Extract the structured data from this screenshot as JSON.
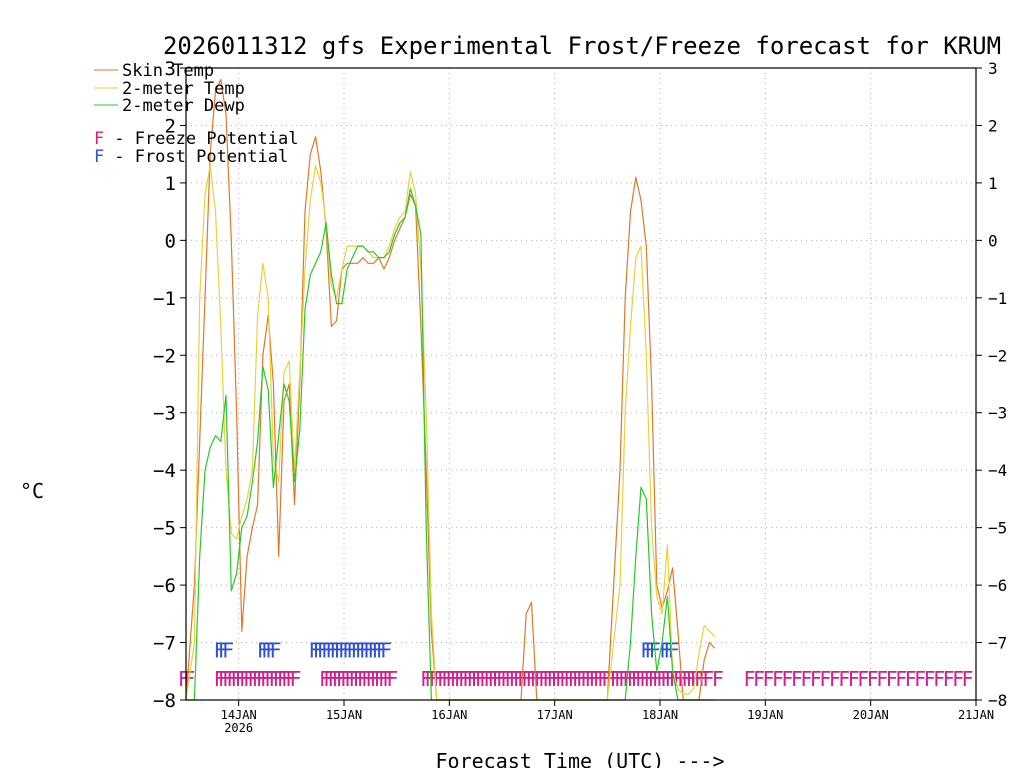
{
  "chart_data": {
    "type": "line",
    "title": "2026011312 gfs Experimental Frost/Freeze forecast for KRUM",
    "xlabel": "Forecast Time (UTC) --->",
    "ylabel": "°C",
    "xlim": [
      13.5,
      21.0
    ],
    "ylim": [
      -8,
      3
    ],
    "yticks": [
      -8,
      -7,
      -6,
      -5,
      -4,
      -3,
      -2,
      -1,
      0,
      1,
      2,
      3
    ],
    "xticks": [
      {
        "x": 14,
        "label": "14JAN",
        "sublabel": "2026"
      },
      {
        "x": 15,
        "label": "15JAN",
        "sublabel": ""
      },
      {
        "x": 16,
        "label": "16JAN",
        "sublabel": ""
      },
      {
        "x": 17,
        "label": "17JAN",
        "sublabel": ""
      },
      {
        "x": 18,
        "label": "18JAN",
        "sublabel": ""
      },
      {
        "x": 19,
        "label": "19JAN",
        "sublabel": ""
      },
      {
        "x": 20,
        "label": "20JAN",
        "sublabel": ""
      },
      {
        "x": 21,
        "label": "21JAN",
        "sublabel": ""
      }
    ],
    "grid": true,
    "legend": {
      "position": "top-left",
      "series_entries": [
        "Skin Temp",
        "2-meter Temp",
        "2-meter Dewp"
      ],
      "marker_entries": [
        {
          "glyph": "F",
          "text": " - Freeze Potential",
          "color": "#d0208a"
        },
        {
          "glyph": "F",
          "text": " - Frost Potential",
          "color": "#3050d8"
        }
      ]
    },
    "series": [
      {
        "name": "Skin Temp",
        "color": "#e0782a",
        "x": [
          13.5,
          13.58,
          13.63,
          13.68,
          13.73,
          13.78,
          13.83,
          13.88,
          13.93,
          13.98,
          14.03,
          14.08,
          14.13,
          14.18,
          14.23,
          14.28,
          14.33,
          14.38,
          14.43,
          14.48,
          14.53,
          14.58,
          14.63,
          14.68,
          14.73,
          14.78,
          14.83,
          14.88,
          14.93,
          14.98,
          15.03,
          15.08,
          15.13,
          15.18,
          15.23,
          15.28,
          15.33,
          15.38,
          15.43,
          15.48,
          15.53,
          15.58,
          15.63,
          15.68,
          15.73,
          15.78,
          15.83,
          15.88,
          15.93,
          15.98,
          16.03,
          16.5,
          16.68,
          16.73,
          16.78,
          16.83,
          17.5,
          17.62,
          17.67,
          17.72,
          17.77,
          17.82,
          17.87,
          17.92,
          17.97,
          18.02,
          18.07,
          18.12,
          18.17,
          18.22,
          18.27,
          18.32,
          18.37,
          18.42,
          18.47,
          18.52
        ],
        "y": [
          -8,
          -6,
          -3.5,
          -1,
          1.5,
          2.6,
          2.8,
          2.2,
          0,
          -3,
          -6.8,
          -5.5,
          -5,
          -4.6,
          -2,
          -1.3,
          -2.5,
          -5.5,
          -2.8,
          -2.5,
          -4.6,
          -2.5,
          0.5,
          1.5,
          1.8,
          1.2,
          0.2,
          -1.5,
          -1.4,
          -0.5,
          -0.4,
          -0.4,
          -0.4,
          -0.3,
          -0.4,
          -0.4,
          -0.3,
          -0.5,
          -0.3,
          0,
          0.2,
          0.4,
          0.8,
          0.6,
          -1.5,
          -4,
          -6.8,
          -8,
          -8,
          -8,
          -8,
          -8,
          -8,
          -6.5,
          -6.3,
          -8,
          -8,
          -4,
          -1,
          0.5,
          1.1,
          0.7,
          -0.1,
          -2.5,
          -6,
          -6.4,
          -6.1,
          -5.7,
          -6.8,
          -8,
          -8,
          -8,
          -8,
          -7.3,
          -7.0,
          -7.1
        ]
      },
      {
        "name": "2-meter Temp",
        "color": "#e8d23a",
        "x": [
          13.5,
          13.58,
          13.63,
          13.68,
          13.73,
          13.78,
          13.83,
          13.88,
          13.93,
          13.98,
          14.03,
          14.08,
          14.13,
          14.18,
          14.23,
          14.28,
          14.33,
          14.38,
          14.43,
          14.48,
          14.53,
          14.58,
          14.63,
          14.68,
          14.73,
          14.78,
          14.83,
          14.88,
          14.93,
          14.98,
          15.03,
          15.08,
          15.13,
          15.18,
          15.23,
          15.28,
          15.33,
          15.38,
          15.43,
          15.48,
          15.53,
          15.58,
          15.63,
          15.68,
          15.73,
          15.78,
          15.83,
          15.88,
          15.93,
          15.98,
          16.03,
          17.5,
          17.62,
          17.67,
          17.72,
          17.77,
          17.82,
          17.87,
          17.92,
          17.97,
          18.02,
          18.07,
          18.12,
          18.17,
          18.22,
          18.27,
          18.32,
          18.37,
          18.42,
          18.47,
          18.52
        ],
        "y": [
          -8,
          -7,
          -1,
          0.8,
          1.3,
          0.5,
          -1.5,
          -4,
          -5.1,
          -5.2,
          -4.8,
          -4.5,
          -4,
          -1.3,
          -0.4,
          -1,
          -3.8,
          -4.2,
          -2.3,
          -2.1,
          -4,
          -2.3,
          -0.5,
          0.7,
          1.3,
          1,
          0.3,
          -0.8,
          -1,
          -0.5,
          -0.1,
          -0.1,
          -0.1,
          -0.1,
          -0.2,
          -0.3,
          -0.3,
          -0.3,
          -0.1,
          0.2,
          0.4,
          0.5,
          1.2,
          0.8,
          -0.5,
          -3,
          -6.5,
          -8,
          -8,
          -8,
          -8,
          -8,
          -6,
          -3,
          -1.5,
          -0.3,
          -0.1,
          -2,
          -5,
          -6.2,
          -6.5,
          -5.3,
          -7.5,
          -7.8,
          -7.9,
          -7.9,
          -7.8,
          -7.2,
          -6.7,
          -6.8,
          -6.9
        ]
      },
      {
        "name": "2-meter Dewp",
        "color": "#28c828",
        "x": [
          13.5,
          13.58,
          13.63,
          13.68,
          13.73,
          13.78,
          13.83,
          13.88,
          13.93,
          13.98,
          14.03,
          14.08,
          14.13,
          14.18,
          14.23,
          14.28,
          14.33,
          14.38,
          14.43,
          14.48,
          14.53,
          14.58,
          14.63,
          14.68,
          14.73,
          14.78,
          14.83,
          14.88,
          14.93,
          14.98,
          15.03,
          15.08,
          15.13,
          15.18,
          15.23,
          15.28,
          15.33,
          15.38,
          15.43,
          15.48,
          15.53,
          15.58,
          15.63,
          15.68,
          15.73,
          15.78,
          15.83,
          15.88,
          15.93,
          15.98,
          16.03,
          17.5,
          17.62,
          17.67,
          17.72,
          17.77,
          17.82,
          17.87,
          17.92,
          17.97,
          18.02,
          18.07,
          18.12,
          18.17,
          18.22,
          18.27,
          18.32,
          18.37,
          18.42,
          18.47,
          18.52
        ],
        "y": [
          -8,
          -8,
          -5.5,
          -4,
          -3.6,
          -3.4,
          -3.5,
          -2.7,
          -6.1,
          -5.8,
          -5,
          -4.8,
          -4.2,
          -3.5,
          -2.2,
          -2.6,
          -4.3,
          -3.4,
          -2.5,
          -2.8,
          -4.2,
          -3.3,
          -1.2,
          -0.6,
          -0.4,
          -0.2,
          0.3,
          -0.6,
          -1.1,
          -1.1,
          -0.5,
          -0.3,
          -0.1,
          -0.1,
          -0.2,
          -0.2,
          -0.3,
          -0.3,
          -0.2,
          0.1,
          0.3,
          0.4,
          0.9,
          0.6,
          0.1,
          -5,
          -8,
          -8,
          -8,
          -8,
          -8,
          -8,
          -8,
          -8,
          -7,
          -5.5,
          -4.3,
          -4.5,
          -6.5,
          -7.5,
          -7,
          -6.2,
          -7.5,
          -8,
          -8,
          -8,
          -8,
          -8,
          -8,
          -8,
          -8
        ]
      }
    ],
    "frost_markers": {
      "label": "Frost Potential",
      "glyph": "F",
      "y": -7.1,
      "x": [
        13.82,
        13.86,
        13.9,
        14.23,
        14.27,
        14.31,
        14.35,
        14.72,
        14.76,
        14.8,
        14.84,
        14.88,
        14.92,
        14.96,
        15.0,
        15.04,
        15.08,
        15.12,
        15.16,
        15.2,
        15.24,
        15.28,
        15.32,
        15.36,
        15.4,
        17.87,
        17.91,
        17.95,
        18.05,
        18.09,
        18.13
      ]
    },
    "freeze_markers": {
      "label": "Freeze Potential",
      "glyph": "F",
      "y": -7.6,
      "x": [
        13.48,
        13.53,
        13.82,
        13.86,
        13.9,
        13.94,
        13.98,
        14.02,
        14.06,
        14.1,
        14.14,
        14.18,
        14.22,
        14.26,
        14.3,
        14.34,
        14.38,
        14.42,
        14.46,
        14.5,
        14.54,
        14.82,
        14.86,
        14.9,
        14.94,
        14.98,
        15.02,
        15.06,
        15.1,
        15.14,
        15.18,
        15.22,
        15.26,
        15.3,
        15.34,
        15.38,
        15.42,
        15.46,
        15.78,
        15.82,
        15.86,
        15.9,
        15.94,
        15.98,
        16.02,
        16.06,
        16.1,
        16.14,
        16.18,
        16.22,
        16.26,
        16.3,
        16.34,
        16.38,
        16.42,
        16.46,
        16.5,
        16.54,
        16.58,
        16.62,
        16.66,
        16.7,
        16.74,
        16.78,
        16.82,
        16.86,
        16.9,
        16.94,
        16.98,
        17.02,
        17.06,
        17.1,
        17.14,
        17.18,
        17.22,
        17.26,
        17.3,
        17.34,
        17.38,
        17.42,
        17.46,
        17.5,
        17.54,
        17.58,
        17.62,
        17.66,
        17.7,
        17.74,
        17.78,
        17.82,
        17.86,
        17.9,
        17.94,
        17.98,
        18.02,
        18.06,
        18.1,
        18.14,
        18.18,
        18.22,
        18.26,
        18.3,
        18.34,
        18.38,
        18.42,
        18.46,
        18.55,
        18.85,
        18.94,
        19.03,
        19.12,
        19.21,
        19.3,
        19.39,
        19.48,
        19.57,
        19.66,
        19.75,
        19.84,
        19.93,
        20.02,
        20.11,
        20.2,
        20.29,
        20.38,
        20.47,
        20.56,
        20.65,
        20.74,
        20.83,
        20.92
      ]
    }
  }
}
